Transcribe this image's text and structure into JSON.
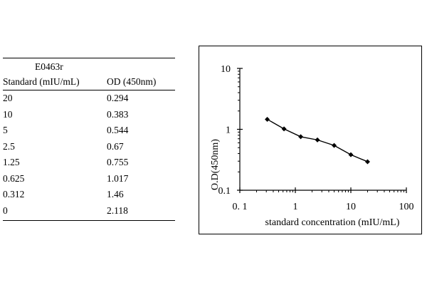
{
  "table": {
    "title": "E0463r",
    "headers": [
      "Standard (mIU/mL)",
      "OD (450nm)"
    ],
    "rows": [
      [
        "20",
        "0.294"
      ],
      [
        "10",
        "0.383"
      ],
      [
        "5",
        "0.544"
      ],
      [
        "2.5",
        "0.67"
      ],
      [
        "1.25",
        "0.755"
      ],
      [
        "0.625",
        "1.017"
      ],
      [
        "0.312",
        "1.46"
      ],
      [
        "0",
        "2.118"
      ]
    ]
  },
  "chart_data": {
    "type": "line",
    "xlabel": "standard concentration (mIU/mL)",
    "ylabel": "O.D(450nm)",
    "xscale": "log",
    "yscale": "log",
    "xlim": [
      0.1,
      100
    ],
    "ylim": [
      0.1,
      10
    ],
    "xticks": [
      "0. 1",
      "1",
      "10",
      "100"
    ],
    "yticks": [
      "0.1",
      "1",
      "10"
    ],
    "grid": false,
    "legend": "none",
    "line_color": "#000000",
    "series": [
      {
        "x": [
          0.312,
          0.625,
          1.25,
          2.5,
          5,
          10,
          20
        ],
        "y": [
          1.46,
          1.017,
          0.755,
          0.67,
          0.544,
          0.383,
          0.294
        ]
      }
    ]
  }
}
